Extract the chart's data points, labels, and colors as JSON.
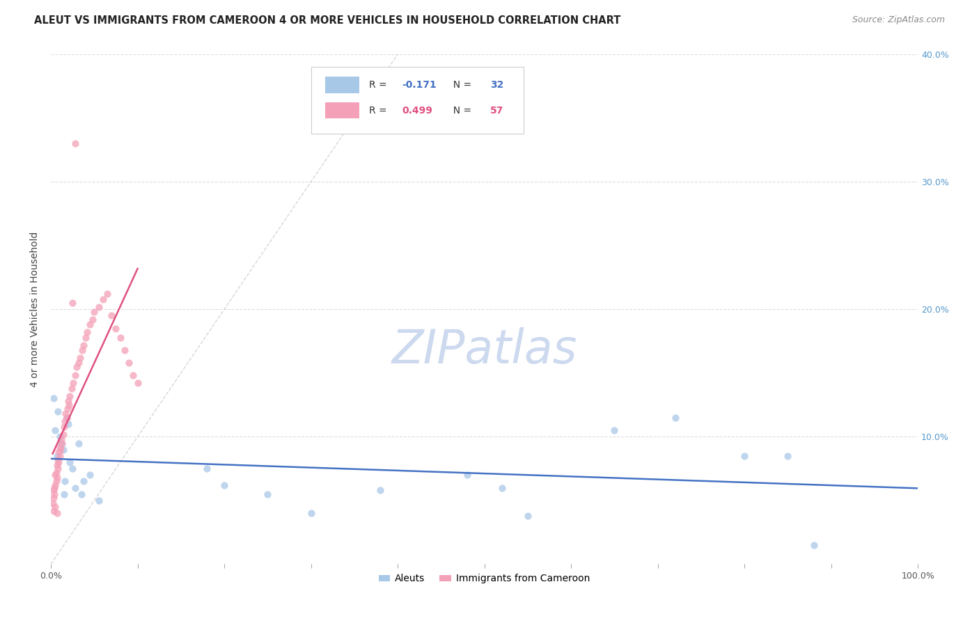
{
  "title": "ALEUT VS IMMIGRANTS FROM CAMEROON 4 OR MORE VEHICLES IN HOUSEHOLD CORRELATION CHART",
  "source": "Source: ZipAtlas.com",
  "ylabel": "4 or more Vehicles in Household",
  "xlim": [
    0,
    1.0
  ],
  "ylim": [
    0,
    0.4
  ],
  "xticks": [
    0.0,
    0.1,
    0.2,
    0.3,
    0.4,
    0.5,
    0.6,
    0.7,
    0.8,
    0.9,
    1.0
  ],
  "yticks": [
    0.0,
    0.1,
    0.2,
    0.3,
    0.4
  ],
  "xtick_labels": [
    "0.0%",
    "",
    "",
    "",
    "",
    "",
    "",
    "",
    "",
    "",
    "100.0%"
  ],
  "ytick_labels": [
    "",
    "10.0%",
    "20.0%",
    "30.0%",
    "40.0%"
  ],
  "aleuts_R": -0.171,
  "aleuts_N": 32,
  "cameroon_R": 0.499,
  "cameroon_N": 57,
  "aleuts_color": "#a8c8e8",
  "cameroon_color": "#f4a0b8",
  "aleuts_line_color": "#4472c4",
  "cameroon_line_color": "#e05080",
  "diag_color": "#cccccc",
  "grid_color": "#dddddd",
  "watermark_color": "#ccd9ee",
  "legend_edge_color": "#cccccc",
  "title_color": "#222222",
  "source_color": "#888888",
  "ylabel_color": "#444444",
  "tick_label_color": "#5599cc",
  "bottom_legend_labels": [
    "Aleuts",
    "Immigrants from Cameroon"
  ]
}
